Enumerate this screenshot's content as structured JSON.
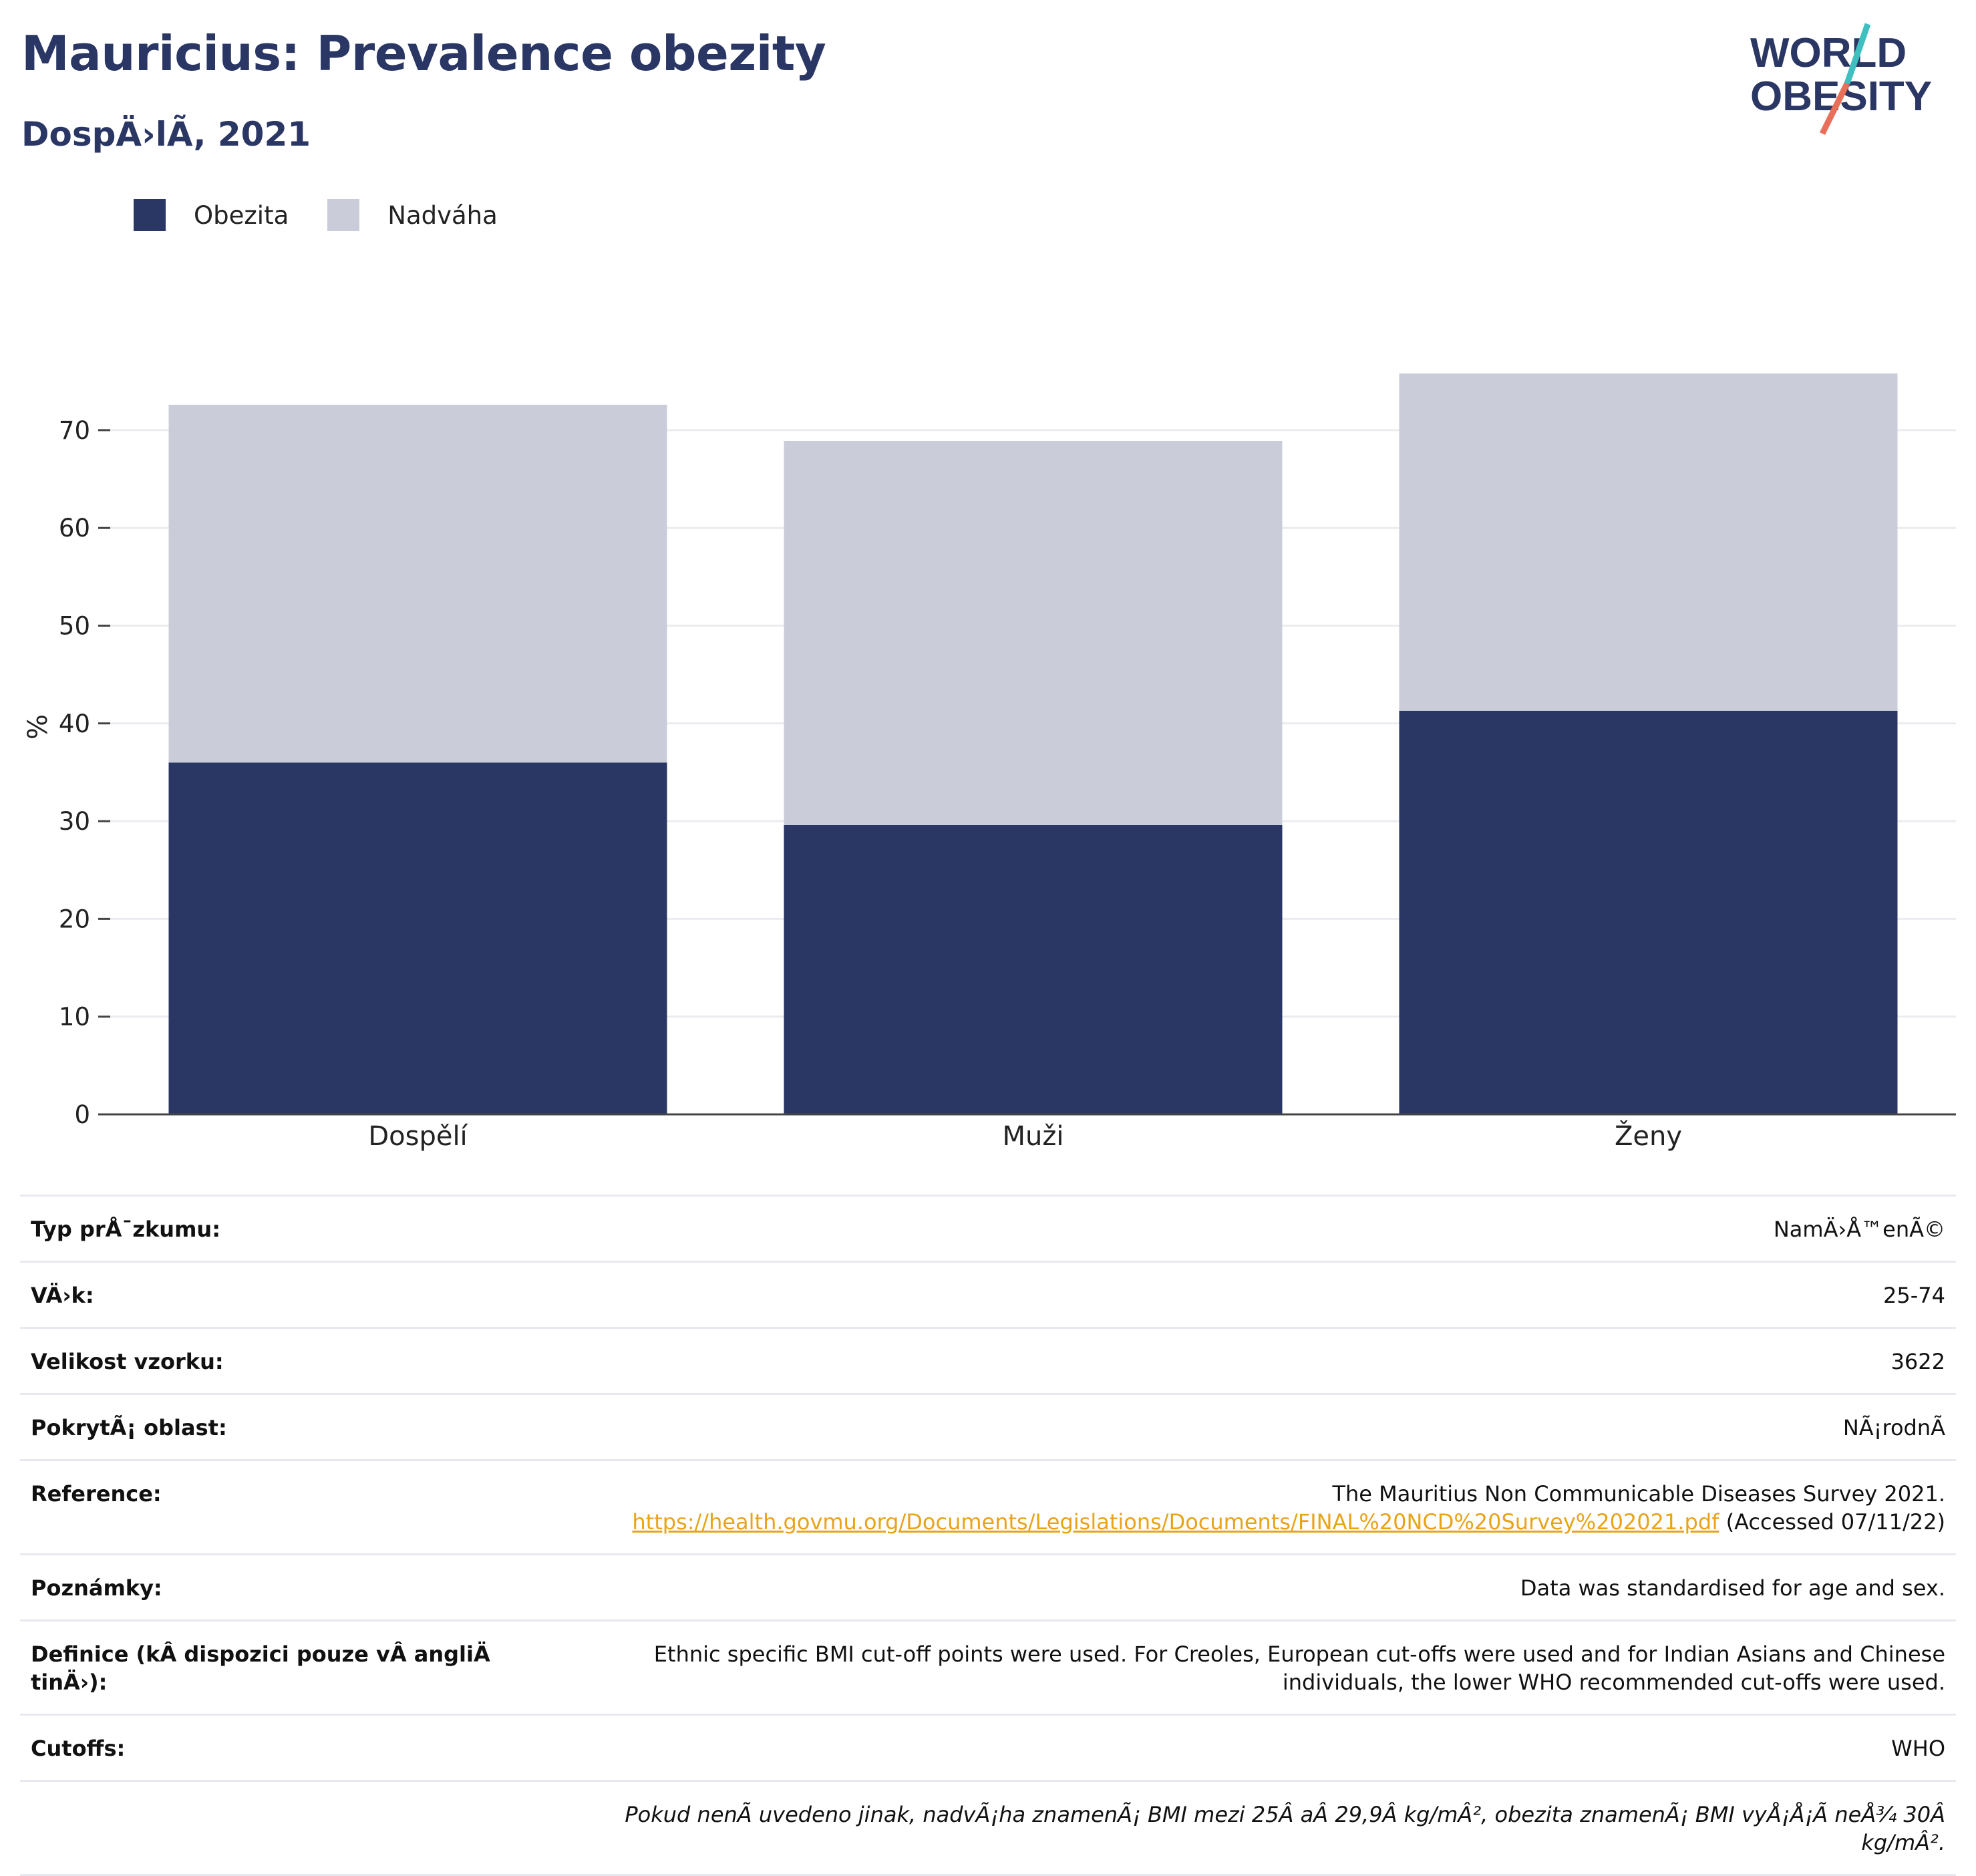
{
  "header": {
    "title": "Mauricius: Prevalence obezity",
    "subtitle": "DospÄ›lÃ, 2021"
  },
  "logo": {
    "line1": "WORLD",
    "line2": "OBESITY"
  },
  "legend": [
    {
      "label": "Obezita",
      "color": "#2a3663"
    },
    {
      "label": "Nadváha",
      "color": "#cacdd9"
    }
  ],
  "chart_data": {
    "type": "bar",
    "stacked": true,
    "categories": [
      "Dospělí",
      "Muži",
      "Ženy"
    ],
    "series": [
      {
        "name": "Obezita",
        "color": "#2a3663",
        "values": [
          36.0,
          29.6,
          41.3
        ]
      },
      {
        "name": "Nadváha",
        "color": "#cacdd9",
        "values": [
          36.6,
          39.3,
          34.5
        ]
      }
    ],
    "ylabel": "%",
    "ylim": [
      0,
      80
    ],
    "yticks": [
      0,
      10,
      20,
      30,
      40,
      50,
      60,
      70
    ],
    "grid": true,
    "legend_position": "top-left"
  },
  "info": {
    "rows": [
      {
        "key": "Typ prÅ¯zkumu:",
        "value": "NamÄ›Å™enÃ©"
      },
      {
        "key": "VÄ›k:",
        "value": "25-74"
      },
      {
        "key": "Velikost vzorku:",
        "value": "3622"
      },
      {
        "key": "PokrytÃ¡ oblast:",
        "value": "NÃ¡rodnÃ"
      },
      {
        "key": "Reference:",
        "value": "The Mauritius Non Communicable Diseases Survey 2021.",
        "link": "https://health.govmu.org/Documents/Legislations/Documents/FINAL%20NCD%20Survey%202021.pdf",
        "suffix": " (Accessed 07/11/22)"
      },
      {
        "key": "Poznámky:",
        "value": "Data was standardised for age and sex."
      },
      {
        "key": "Definice (kÂ dispozici pouze vÂ angliÄ\u001d tinÄ›):",
        "value": "Ethnic specific BMI cut-off points were used. For Creoles, European cut-offs were used and for Indian Asians and Chinese individuals, the lower WHO recommended cut-offs were used."
      },
      {
        "key": "Cutoffs:",
        "value": "WHO"
      }
    ],
    "footnote": "Pokud nenÃ uvedeno jinak, nadvÃ¡ha znamenÃ¡ BMI mezi 25Â aÂ 29,9Â kg/mÂ², obezita znamenÃ¡ BMI vyÅ¡Å¡Ã neÅ¾ 30Â kg/mÂ²."
  }
}
